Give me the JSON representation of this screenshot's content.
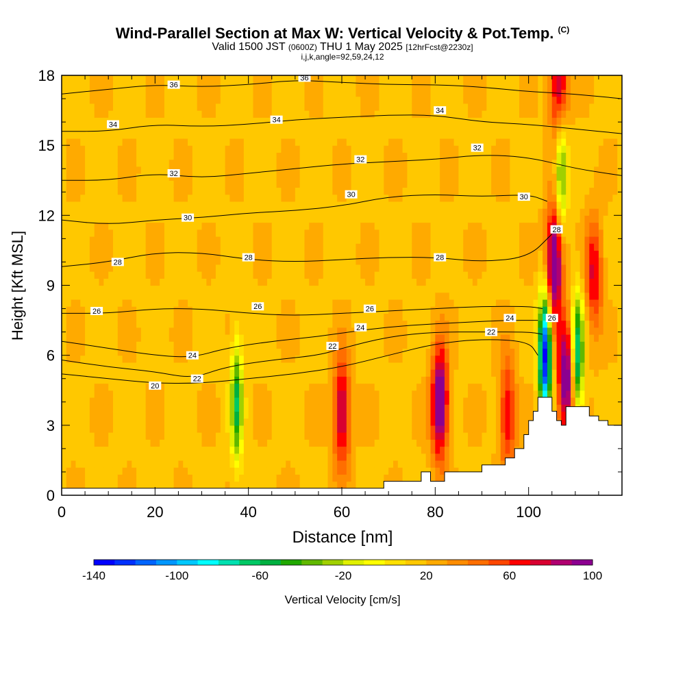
{
  "titles": {
    "main": "Wind-Parallel Section at Max W: Vertical Velocity & Pot.Temp.",
    "main_mark": "(C)",
    "sub_a": "Valid 1500 JST",
    "sub_b": "(0600Z)",
    "sub_c": "THU 1 May 2025",
    "sub_d": "[12hrFcst@2230z]",
    "sub2": "i,j,k,angle=92,59,24,12"
  },
  "chart_data": {
    "type": "heatmap",
    "xlabel": "Distance [nm]",
    "ylabel": "Height [Kft MSL]",
    "xlim": [
      0,
      120
    ],
    "ylim": [
      0,
      18
    ],
    "xticks": [
      0,
      20,
      40,
      60,
      80,
      100
    ],
    "yticks": [
      0,
      3,
      6,
      9,
      12,
      15,
      18
    ],
    "colorbar": {
      "label": "Vertical Velocity [cm/s]",
      "min": -140,
      "max": 100,
      "step": 10,
      "tick_labels": [
        -140,
        -100,
        -60,
        -20,
        20,
        60,
        100
      ],
      "colors": [
        "#0000ff",
        "#0030ff",
        "#0064ff",
        "#0096ff",
        "#00c8ff",
        "#00ffff",
        "#00e0b0",
        "#00c864",
        "#00b040",
        "#20a800",
        "#60b800",
        "#a0d000",
        "#e0f000",
        "#ffff00",
        "#ffe000",
        "#ffc800",
        "#ffaa00",
        "#ff8c00",
        "#ff6e00",
        "#ff4600",
        "#ff0000",
        "#d80030",
        "#b00070",
        "#8c0090"
      ]
    },
    "terrain_profile": [
      [
        0,
        0.3
      ],
      [
        69,
        0.3
      ],
      [
        69,
        0.6
      ],
      [
        77,
        0.6
      ],
      [
        77,
        1.0
      ],
      [
        79,
        1.0
      ],
      [
        79,
        0.6
      ],
      [
        82,
        0.6
      ],
      [
        82,
        1.0
      ],
      [
        90,
        1.0
      ],
      [
        90,
        1.3
      ],
      [
        95,
        1.3
      ],
      [
        95,
        1.6
      ],
      [
        97,
        1.6
      ],
      [
        97,
        2.0
      ],
      [
        99,
        2.0
      ],
      [
        99,
        2.6
      ],
      [
        100,
        2.6
      ],
      [
        100,
        3.2
      ],
      [
        101,
        3.2
      ],
      [
        101,
        3.6
      ],
      [
        102,
        3.6
      ],
      [
        102,
        4.2
      ],
      [
        105,
        4.2
      ],
      [
        105,
        3.6
      ],
      [
        106,
        3.6
      ],
      [
        106,
        3.2
      ],
      [
        107,
        3.2
      ],
      [
        107,
        3.0
      ],
      [
        108,
        3.0
      ],
      [
        108,
        3.8
      ],
      [
        113,
        3.8
      ],
      [
        113,
        3.4
      ],
      [
        115,
        3.4
      ],
      [
        115,
        3.2
      ],
      [
        117,
        3.2
      ],
      [
        117,
        3.0
      ],
      [
        120,
        3.0
      ]
    ],
    "updrafts": [
      {
        "x": 60,
        "z": 3.5,
        "w": 70
      },
      {
        "x": 81,
        "z": 4.0,
        "w": 95
      },
      {
        "x": 95.5,
        "z": 3.5,
        "w": 55
      },
      {
        "x": 105.5,
        "z": 10.0,
        "w": 100
      },
      {
        "x": 108,
        "z": 5.0,
        "w": 90
      },
      {
        "x": 106.5,
        "z": 17.5,
        "w": 75
      },
      {
        "x": 114,
        "z": 9.5,
        "w": 55
      }
    ],
    "downdrafts": [
      {
        "x": 37.5,
        "z": 4.0,
        "w": -55
      },
      {
        "x": 103.5,
        "z": 6.0,
        "w": -135
      },
      {
        "x": 107,
        "z": 14.0,
        "w": -50
      },
      {
        "x": 110.5,
        "z": 6.0,
        "w": -70
      }
    ],
    "theta_contours": [
      {
        "level": 20,
        "points": [
          [
            0,
            5.2
          ],
          [
            10,
            5.0
          ],
          [
            20,
            4.8
          ],
          [
            30,
            4.8
          ],
          [
            40,
            5.0
          ],
          [
            50,
            5.2
          ],
          [
            60,
            5.5
          ],
          [
            70,
            6.0
          ],
          [
            80,
            6.5
          ],
          [
            90,
            6.7
          ],
          [
            100,
            6.6
          ],
          [
            102,
            6.0
          ]
        ]
      },
      {
        "level": 22,
        "points": [
          [
            0,
            5.8
          ],
          [
            10,
            5.5
          ],
          [
            20,
            5.3
          ],
          [
            28,
            5.0
          ],
          [
            35,
            5.5
          ],
          [
            45,
            5.8
          ],
          [
            55,
            6.0
          ],
          [
            60,
            6.3
          ],
          [
            70,
            6.8
          ],
          [
            80,
            7.0
          ],
          [
            90,
            7.0
          ],
          [
            100,
            7.0
          ],
          [
            103,
            6.9
          ]
        ]
      },
      {
        "level": 24,
        "points": [
          [
            0,
            6.6
          ],
          [
            10,
            6.3
          ],
          [
            20,
            6.0
          ],
          [
            28,
            5.9
          ],
          [
            35,
            6.3
          ],
          [
            45,
            6.6
          ],
          [
            55,
            6.8
          ],
          [
            65,
            7.1
          ],
          [
            75,
            7.3
          ],
          [
            85,
            7.4
          ],
          [
            95,
            7.5
          ],
          [
            102,
            7.5
          ]
        ]
      },
      {
        "level": 26,
        "points": [
          [
            0,
            7.8
          ],
          [
            10,
            7.8
          ],
          [
            20,
            8.0
          ],
          [
            30,
            8.0
          ],
          [
            40,
            7.8
          ],
          [
            50,
            7.7
          ],
          [
            60,
            7.8
          ],
          [
            70,
            7.9
          ],
          [
            80,
            8.0
          ],
          [
            90,
            8.1
          ],
          [
            100,
            8.1
          ],
          [
            103,
            8.0
          ]
        ]
      },
      {
        "level": 28,
        "points": [
          [
            0,
            9.8
          ],
          [
            10,
            10.0
          ],
          [
            20,
            10.4
          ],
          [
            30,
            10.4
          ],
          [
            40,
            10.1
          ],
          [
            50,
            10.0
          ],
          [
            60,
            10.1
          ],
          [
            70,
            10.2
          ],
          [
            80,
            10.2
          ],
          [
            90,
            10.0
          ],
          [
            100,
            10.2
          ],
          [
            105,
            11.2
          ]
        ]
      },
      {
        "level": 30,
        "points": [
          [
            0,
            11.8
          ],
          [
            10,
            11.6
          ],
          [
            20,
            11.8
          ],
          [
            30,
            11.9
          ],
          [
            40,
            12.1
          ],
          [
            50,
            12.2
          ],
          [
            60,
            12.4
          ],
          [
            70,
            12.8
          ],
          [
            80,
            12.9
          ],
          [
            90,
            12.8
          ],
          [
            100,
            12.9
          ],
          [
            104,
            12.6
          ]
        ]
      },
      {
        "level": 32,
        "points": [
          [
            0,
            13.5
          ],
          [
            10,
            13.5
          ],
          [
            20,
            13.8
          ],
          [
            30,
            13.6
          ],
          [
            40,
            13.8
          ],
          [
            50,
            14.0
          ],
          [
            60,
            14.2
          ],
          [
            70,
            14.3
          ],
          [
            80,
            14.4
          ],
          [
            90,
            14.6
          ],
          [
            100,
            14.5
          ],
          [
            110,
            14.0
          ],
          [
            120,
            13.7
          ]
        ]
      },
      {
        "level": 34,
        "points": [
          [
            0,
            15.6
          ],
          [
            10,
            15.6
          ],
          [
            20,
            15.9
          ],
          [
            30,
            15.8
          ],
          [
            40,
            15.9
          ],
          [
            50,
            16.1
          ],
          [
            60,
            16.2
          ],
          [
            70,
            16.3
          ],
          [
            80,
            16.3
          ],
          [
            90,
            16.0
          ],
          [
            100,
            15.9
          ],
          [
            110,
            15.7
          ],
          [
            120,
            15.5
          ]
        ]
      },
      {
        "level": 36,
        "points": [
          [
            0,
            17.2
          ],
          [
            10,
            17.4
          ],
          [
            20,
            17.6
          ],
          [
            30,
            17.5
          ],
          [
            40,
            17.6
          ],
          [
            50,
            17.8
          ],
          [
            60,
            17.7
          ],
          [
            70,
            17.6
          ],
          [
            80,
            17.6
          ],
          [
            90,
            17.5
          ],
          [
            100,
            17.3
          ],
          [
            110,
            17.2
          ],
          [
            120,
            17.0
          ]
        ]
      }
    ],
    "contour_labels": [
      {
        "text": "36",
        "x": 24,
        "y": 17.6
      },
      {
        "text": "36",
        "x": 52,
        "y": 17.9
      },
      {
        "text": "34",
        "x": 11,
        "y": 15.9
      },
      {
        "text": "34",
        "x": 46,
        "y": 16.1
      },
      {
        "text": "34",
        "x": 81,
        "y": 16.5
      },
      {
        "text": "32",
        "x": 64,
        "y": 14.4
      },
      {
        "text": "32",
        "x": 89,
        "y": 14.9
      },
      {
        "text": "32",
        "x": 24,
        "y": 13.8
      },
      {
        "text": "30",
        "x": 62,
        "y": 12.9
      },
      {
        "text": "30",
        "x": 99,
        "y": 12.8
      },
      {
        "text": "30",
        "x": 27,
        "y": 11.9
      },
      {
        "text": "28",
        "x": 106,
        "y": 11.4
      },
      {
        "text": "28",
        "x": 12,
        "y": 10.0
      },
      {
        "text": "28",
        "x": 40,
        "y": 10.2
      },
      {
        "text": "28",
        "x": 81,
        "y": 10.2
      },
      {
        "text": "26",
        "x": 7.5,
        "y": 7.9
      },
      {
        "text": "26",
        "x": 42,
        "y": 8.1
      },
      {
        "text": "26",
        "x": 66,
        "y": 8.0
      },
      {
        "text": "26",
        "x": 105,
        "y": 7.6
      },
      {
        "text": "24",
        "x": 28,
        "y": 6.0
      },
      {
        "text": "24",
        "x": 64,
        "y": 7.2
      },
      {
        "text": "24",
        "x": 96,
        "y": 7.6
      },
      {
        "text": "22",
        "x": 29,
        "y": 5.0
      },
      {
        "text": "22",
        "x": 58,
        "y": 6.4
      },
      {
        "text": "22",
        "x": 92,
        "y": 7.0
      },
      {
        "text": "20",
        "x": 20,
        "y": 4.7
      }
    ]
  }
}
